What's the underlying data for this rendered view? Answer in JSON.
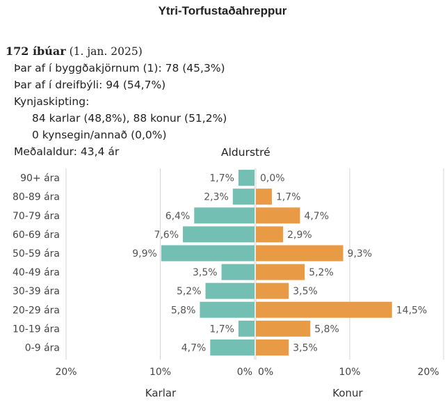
{
  "title": "Ytri-Torfustaðahreppur",
  "population": {
    "count": "172 íbúar",
    "date": "(1. jan. 2025)",
    "urban": "Þar af í byggðakjörnum (1): 78 (45,3%)",
    "rural": "Þar af í dreifbýli: 94 (54,7%)",
    "gender_heading": "Kynjaskipting:",
    "gender_mf": "84 karlar (48,8%), 88 konur (51,2%)",
    "gender_other": "0 kynsegin/annað (0,0%)",
    "mean_age": "Meðalaldur: 43,4 ár"
  },
  "colors": {
    "male": "#74bfb3",
    "female": "#e89a45",
    "grid": "#d6d6d6",
    "text": "#333333"
  },
  "chart_data": {
    "type": "bar",
    "orientation": "horizontal-pyramid",
    "title": "Aldurstré",
    "categories": [
      "90+ ára",
      "80-89 ára",
      "70-79 ára",
      "60-69 ára",
      "50-59 ára",
      "40-49 ára",
      "30-39 ára",
      "20-29 ára",
      "10-19 ára",
      "0-9 ára"
    ],
    "series": [
      {
        "name": "Karlar",
        "values": [
          1.7,
          2.3,
          6.4,
          7.6,
          9.9,
          3.5,
          5.2,
          5.8,
          1.7,
          4.7
        ],
        "labels": [
          "1,7%",
          "2,3%",
          "6,4%",
          "7,6%",
          "9,9%",
          "3,5%",
          "5,2%",
          "5,8%",
          "1,7%",
          "4,7%"
        ]
      },
      {
        "name": "Konur",
        "values": [
          0.0,
          1.7,
          4.7,
          2.9,
          9.3,
          5.2,
          3.5,
          14.5,
          5.8,
          3.5
        ],
        "labels": [
          "0,0%",
          "1,7%",
          "4,7%",
          "2,9%",
          "9,3%",
          "5,2%",
          "3,5%",
          "14,5%",
          "5,8%",
          "3,5%"
        ]
      }
    ],
    "xlim": [
      -20,
      20
    ],
    "xticks_left": [
      "20%",
      "10%",
      "0%"
    ],
    "xticks_right": [
      "0%",
      "10%",
      "20%"
    ],
    "xlabel_left": "Karlar",
    "xlabel_right": "Konur",
    "grid": true
  }
}
